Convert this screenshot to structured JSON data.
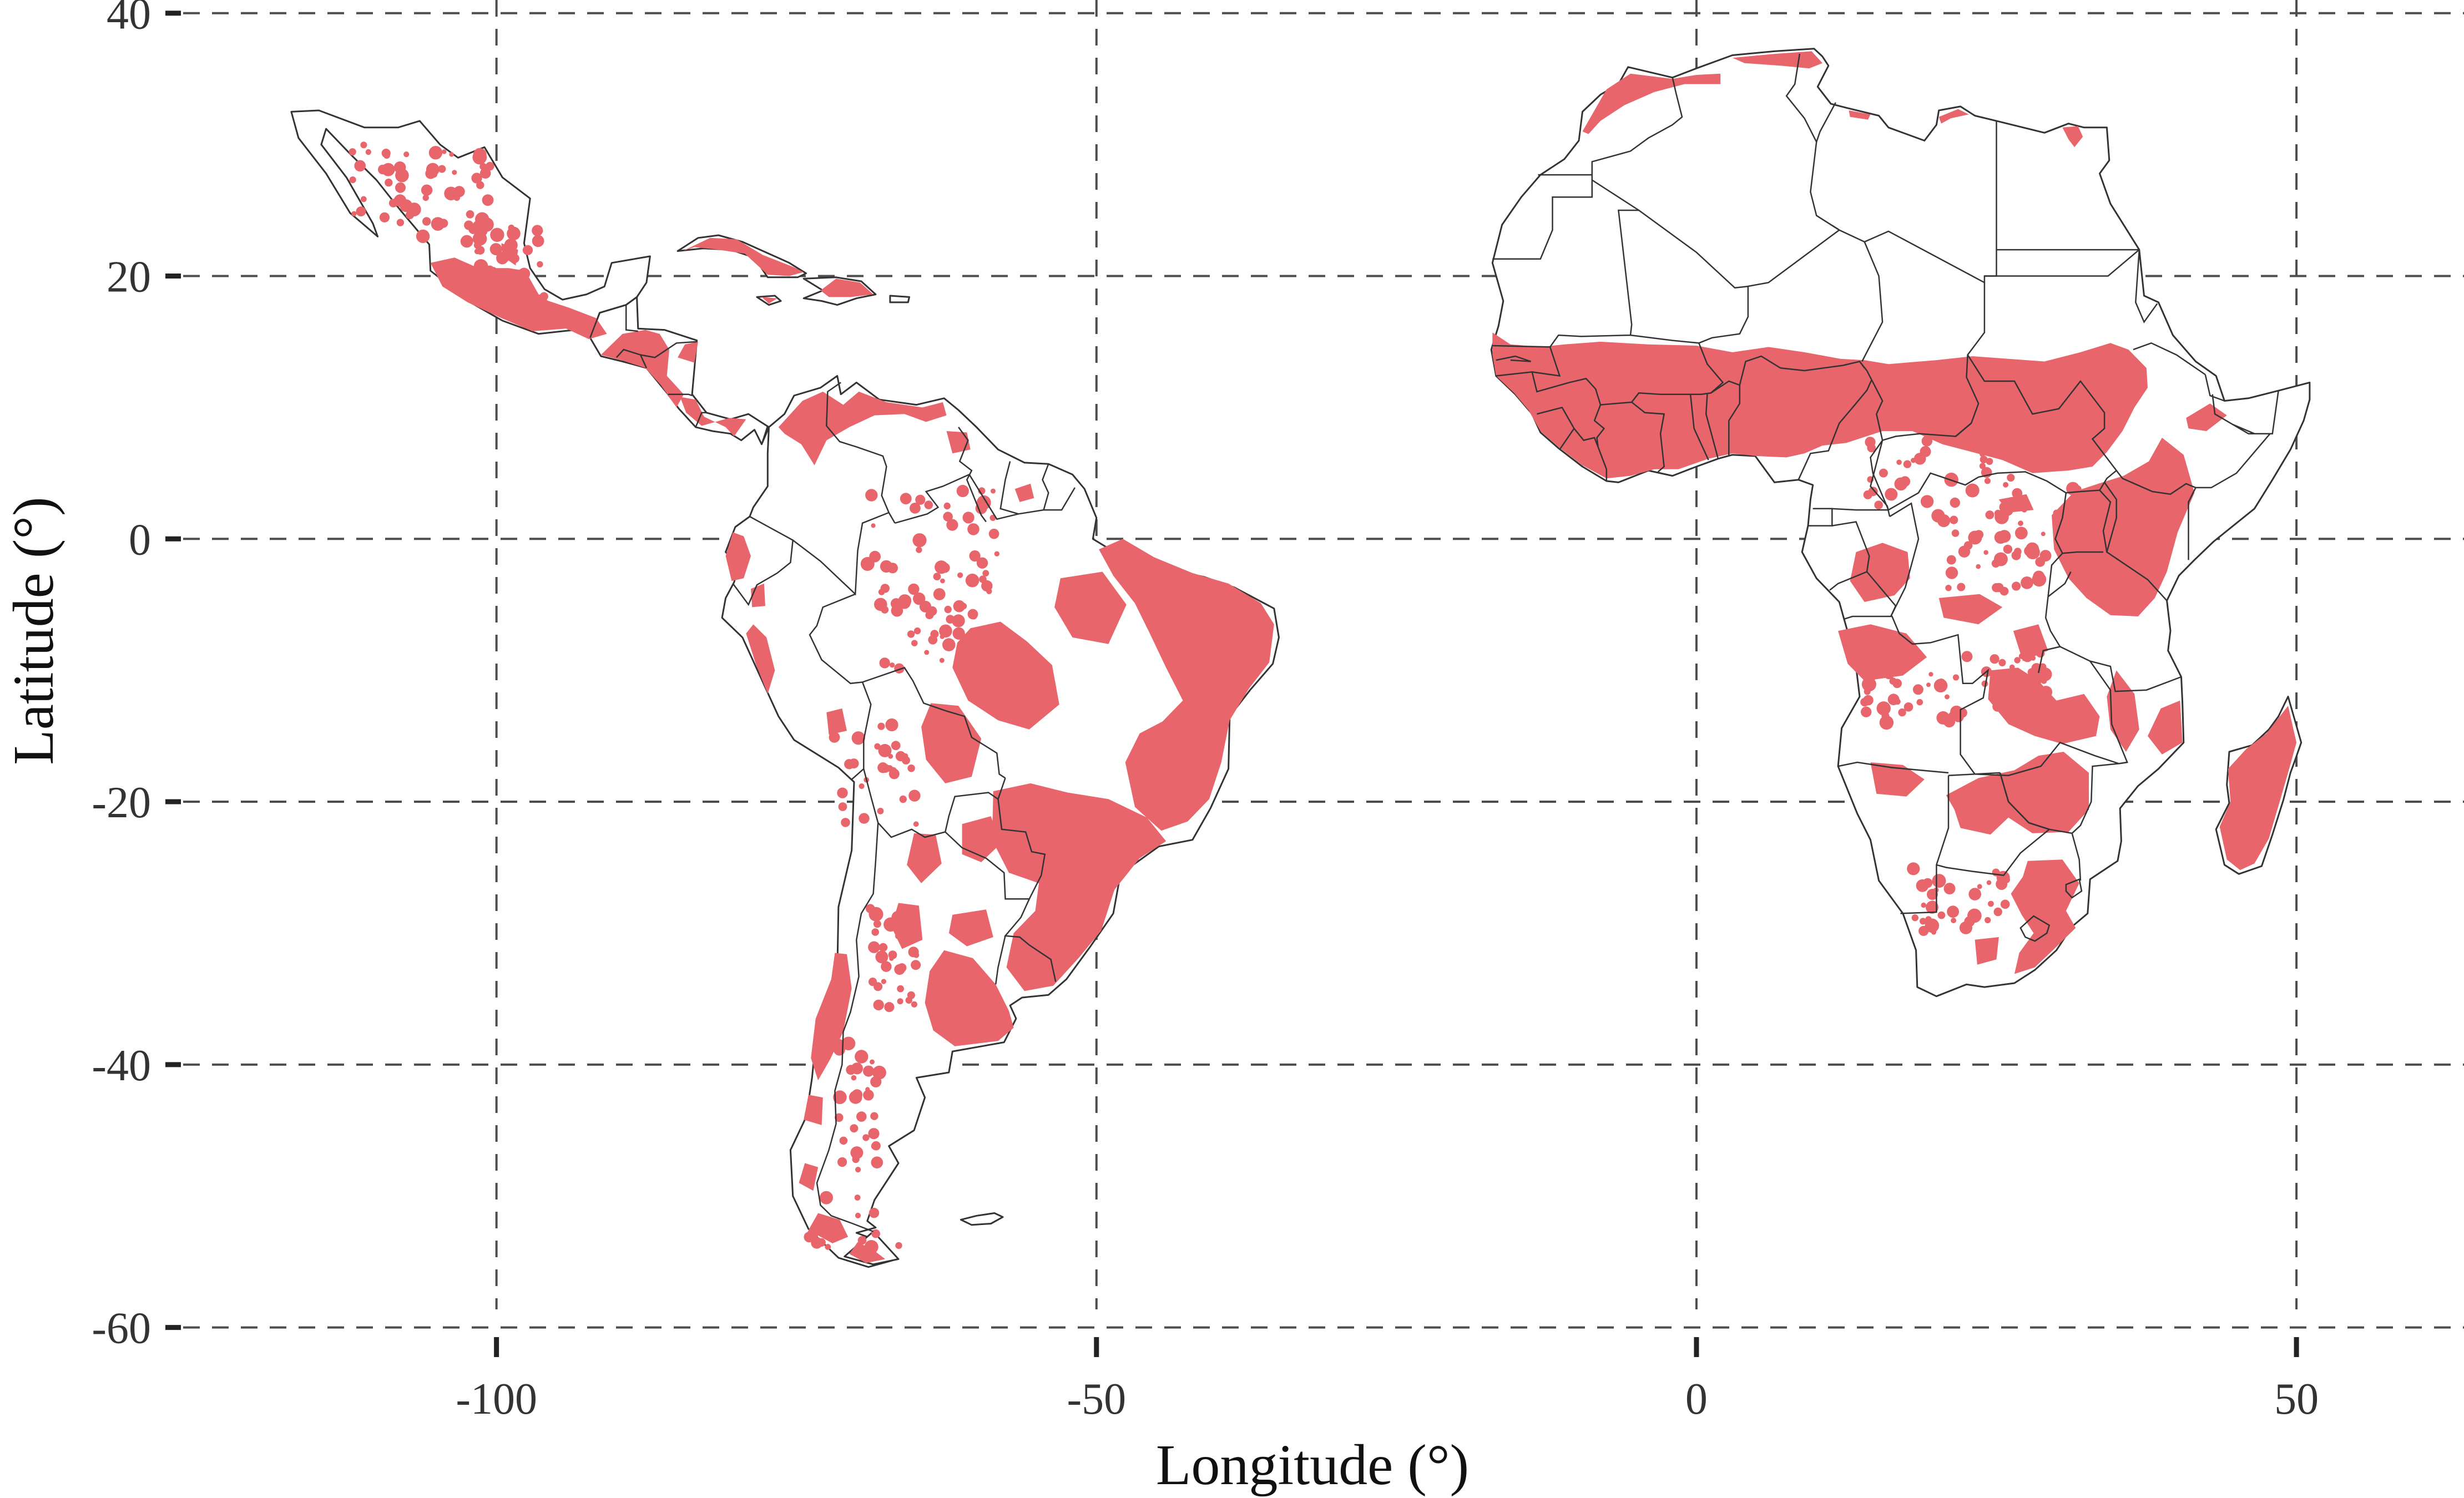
{
  "chart_data": {
    "type": "map",
    "title": "",
    "xlabel": "Longitude (°)",
    "ylabel": "Latitude (°)",
    "xlim": [
      -127.5,
      63.5
    ],
    "ylim": [
      -62,
      41
    ],
    "xticks": [
      -100,
      -50,
      0,
      50
    ],
    "yticks": [
      40,
      20,
      0,
      -20,
      -40,
      -60
    ],
    "xtick_labels": [
      "-100",
      "-50",
      "0",
      "50"
    ],
    "ytick_labels": [
      "40",
      "20",
      "0",
      "-20",
      "-40",
      "-60"
    ],
    "grid": true,
    "grid_style": "dashed",
    "regions_shown": [
      "Mexico",
      "Central America",
      "Caribbean",
      "South America",
      "Africa",
      "Madagascar"
    ],
    "highlight_color": "#e8656c",
    "land_color": "#ffffff",
    "outline_color": "#333333"
  }
}
